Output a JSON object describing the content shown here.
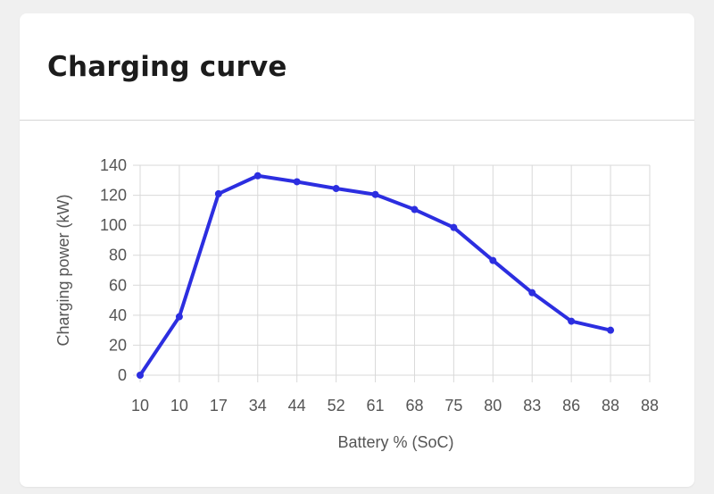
{
  "card": {
    "title": "Charging curve"
  },
  "chart_data": {
    "type": "line",
    "title": "Charging curve",
    "xlabel": "Battery % (SoC)",
    "ylabel": "Charging power (kW)",
    "categories": [
      "10",
      "10",
      "17",
      "34",
      "44",
      "52",
      "61",
      "68",
      "75",
      "80",
      "83",
      "86",
      "88",
      "88"
    ],
    "series": [
      {
        "values": [
          0,
          39,
          121,
          133,
          129,
          124.5,
          120.5,
          110.5,
          98.5,
          76.5,
          55,
          36,
          30,
          null
        ]
      }
    ],
    "ylim": [
      0,
      140
    ],
    "yticks": [
      0,
      20,
      40,
      60,
      80,
      100,
      120,
      140
    ],
    "grid": true,
    "legend": "none",
    "colors": {
      "line": "#2c2ee0",
      "grid": "#d9d9d9",
      "axis_text": "#555555"
    }
  }
}
